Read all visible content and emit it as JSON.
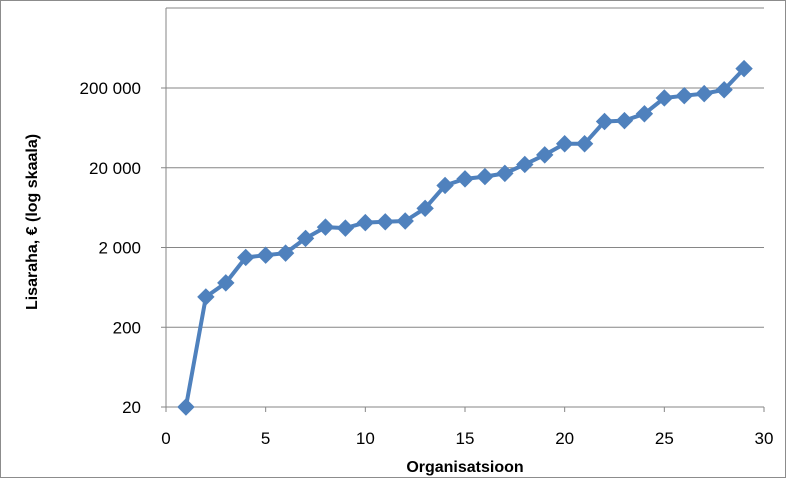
{
  "chart_data": {
    "type": "line",
    "xlabel": "Organisatsioon",
    "ylabel": "Lisaraha, € (log skaala)",
    "xlim": [
      0,
      30
    ],
    "ylim": [
      20,
      400000
    ],
    "y_scale": "log",
    "x_ticks": [
      0,
      5,
      10,
      15,
      20,
      25,
      30
    ],
    "y_ticks": [
      {
        "value": 20,
        "label": "20"
      },
      {
        "value": 200,
        "label": "200"
      },
      {
        "value": 2000,
        "label": "2 000"
      },
      {
        "value": 20000,
        "label": "20 000"
      },
      {
        "value": 200000,
        "label": "200 000"
      }
    ],
    "grid": true,
    "legend": "none",
    "color": "#4f81bd",
    "marker": "diamond",
    "series": [
      {
        "x": [
          1,
          2,
          3,
          4,
          5,
          6,
          7,
          8,
          9,
          10,
          11,
          12,
          13,
          14,
          15,
          16,
          17,
          18,
          19,
          20,
          21,
          22,
          23,
          24,
          25,
          26,
          27,
          28,
          29
        ],
        "values": [
          20,
          480,
          720,
          1500,
          1600,
          1700,
          2600,
          3600,
          3500,
          4100,
          4200,
          4300,
          6200,
          12000,
          14500,
          15500,
          17000,
          22000,
          29000,
          40000,
          40000,
          76000,
          78000,
          95000,
          150000,
          160000,
          170000,
          190000,
          350000
        ]
      }
    ]
  }
}
